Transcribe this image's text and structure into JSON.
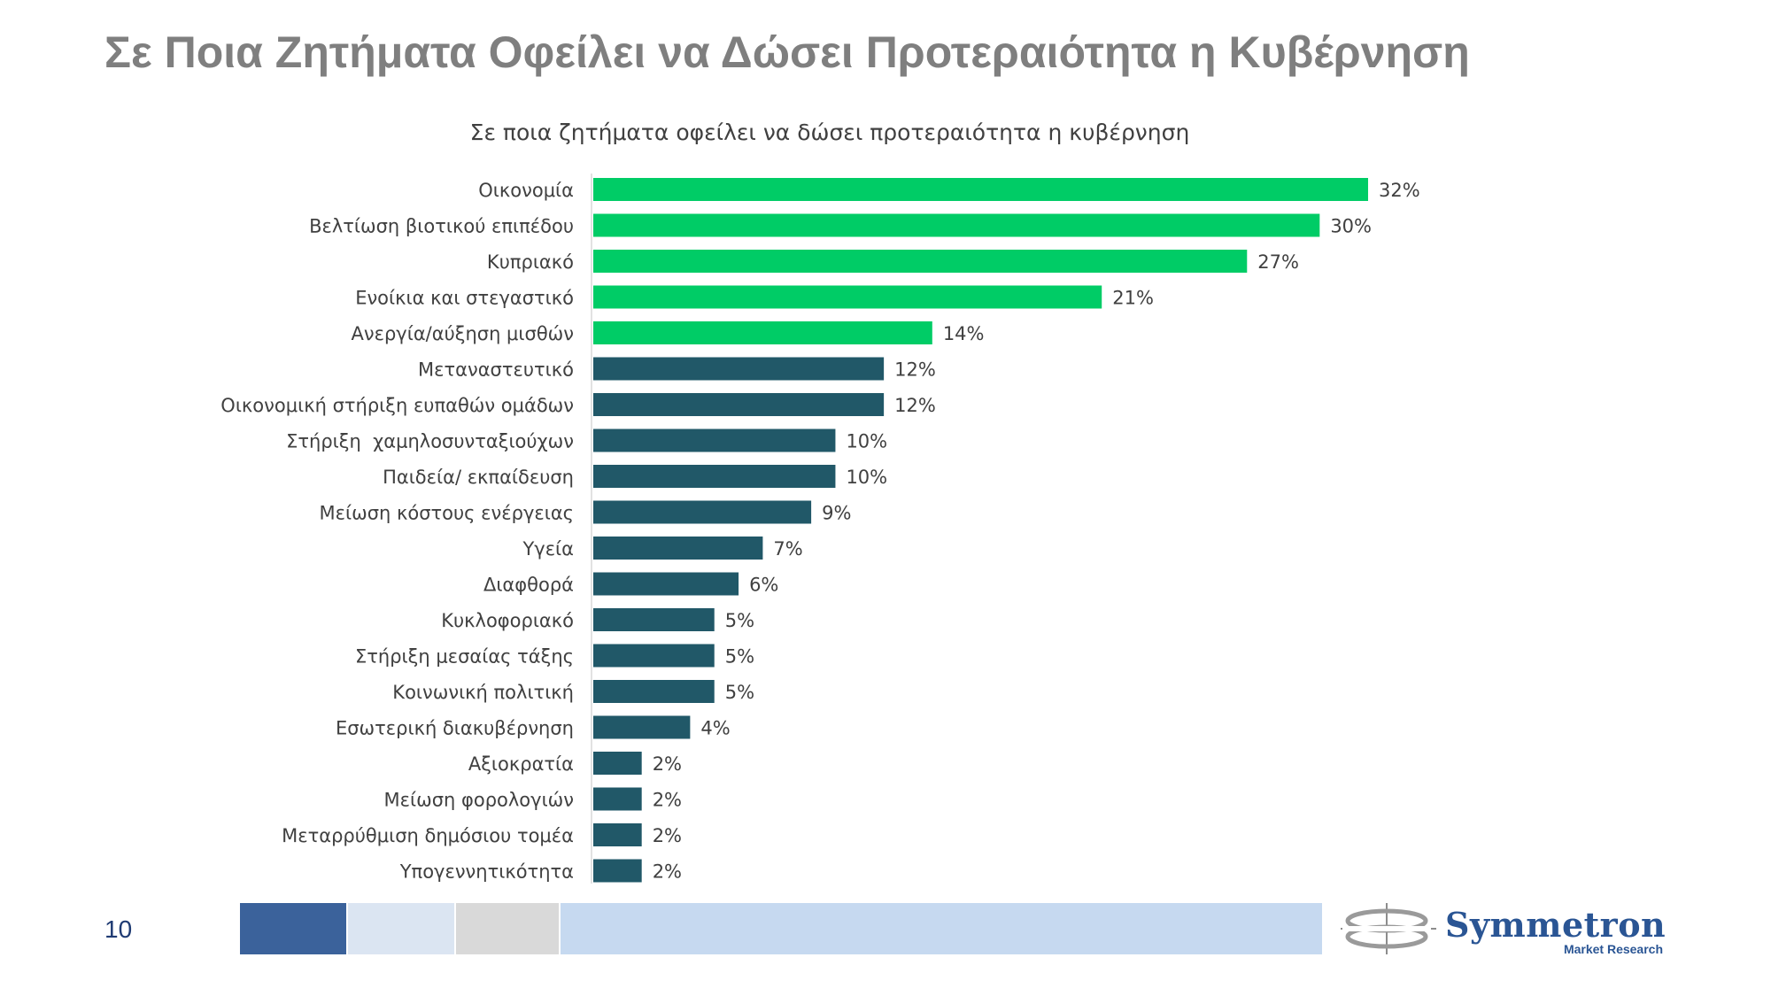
{
  "slide": {
    "title": "Σε Ποια Ζητήματα Οφείλει να Δώσει Προτεραιότητα η Κυβέρνηση",
    "page_number": "10"
  },
  "logo": {
    "word": "Symmetron",
    "subtitle": "Market Research"
  },
  "colors": {
    "highlight": "#00cc66",
    "default": "#215868",
    "footer": [
      "#3b629b",
      "#dbe5f2",
      "#d9d9d9",
      "#c6d9f0"
    ]
  },
  "chart_data": {
    "type": "bar",
    "orientation": "horizontal",
    "title": "Σε ποια ζητήματα οφείλει να δώσει προτεραιότητα η κυβέρνηση",
    "xlim": [
      0,
      32
    ],
    "grid": false,
    "legend": "none",
    "categories": [
      "Οικονομία",
      "Βελτίωση βιοτικού επιπέδου",
      "Κυπριακό",
      "Ενοίκια και στεγαστικό",
      "Ανεργία/αύξηση μισθών",
      "Μεταναστευτικό",
      "Οικονομική στήριξη ευπαθών ομάδων",
      "Στήριξη  χαμηλοσυνταξιούχων",
      "Παιδεία/ εκπαίδευση",
      "Μείωση κόστους ενέργειας",
      "Υγεία",
      "Διαφθορά",
      "Κυκλοφοριακό",
      "Στήριξη μεσαίας τάξης",
      "Κοινωνική πολιτική",
      "Εσωτερική διακυβέρνηση",
      "Αξιοκρατία",
      "Μείωση φορολογιών",
      "Μεταρρύθμιση δημόσιου τομέα",
      "Υπογεννητικότητα"
    ],
    "values": [
      32,
      30,
      27,
      21,
      14,
      12,
      12,
      10,
      10,
      9,
      7,
      6,
      5,
      5,
      5,
      4,
      2,
      2,
      2,
      2
    ],
    "labels": [
      "32%",
      "30%",
      "27%",
      "21%",
      "14%",
      "12%",
      "12%",
      "10%",
      "10%",
      "9%",
      "7%",
      "6%",
      "5%",
      "5%",
      "5%",
      "4%",
      "2%",
      "2%",
      "2%",
      "2%"
    ],
    "highlighted_count": 5
  }
}
